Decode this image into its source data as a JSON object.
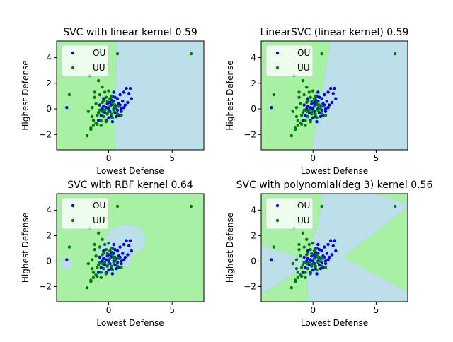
{
  "colors": {
    "region_ou": "#bddfea",
    "region_uu": "#a8f0a3",
    "ou_point": "#0000ff",
    "uu_point": "#008000",
    "axis": "#000000",
    "legend_bg": "#ffffff"
  },
  "chart_data": [
    {
      "type": "scatter",
      "title": "SVC with linear kernel 0.59",
      "xlabel": "Lowest Defense",
      "ylabel": "Highest Defense",
      "xlim": [
        -4.1,
        7.5
      ],
      "ylim": [
        -3.2,
        5.3
      ],
      "xticks": [
        0,
        5
      ],
      "yticks": [
        -2,
        0,
        2,
        4
      ],
      "xtick_labels": [
        "0",
        "5"
      ],
      "ytick_labels": [
        "−2",
        "0",
        "2",
        "4"
      ],
      "legend": {
        "placement": "upper-left",
        "entries": [
          "OU",
          "UU"
        ]
      },
      "regions": {
        "ou": [
          [
            0.5,
            -3.2
          ],
          [
            7.5,
            -3.2
          ],
          [
            7.5,
            5.3
          ],
          [
            0.6,
            5.3
          ]
        ]
      },
      "region_ellipses": []
    },
    {
      "type": "scatter",
      "title": "LinearSVC (linear kernel) 0.59",
      "xlabel": "Lowest Defense",
      "ylabel": "Highest Defense",
      "xlim": [
        -4.1,
        7.5
      ],
      "ylim": [
        -3.2,
        5.3
      ],
      "xticks": [
        0,
        5
      ],
      "yticks": [
        -2,
        0,
        2,
        4
      ],
      "xtick_labels": [
        "0",
        "5"
      ],
      "ytick_labels": [
        "−2",
        "0",
        "2",
        "4"
      ],
      "legend": {
        "placement": "upper-left",
        "entries": [
          "OU",
          "UU"
        ]
      },
      "regions": {
        "ou": [
          [
            -0.1,
            -3.2
          ],
          [
            7.5,
            -3.2
          ],
          [
            7.5,
            5.3
          ],
          [
            1.4,
            5.3
          ]
        ]
      },
      "region_ellipses": []
    },
    {
      "type": "scatter",
      "title": "SVC with RBF kernel 0.64",
      "xlabel": "Lowest Defense",
      "ylabel": "Highest Defense",
      "xlim": [
        -4.1,
        7.5
      ],
      "ylim": [
        -3.2,
        5.3
      ],
      "xticks": [
        0,
        5
      ],
      "yticks": [
        -2,
        0,
        2,
        4
      ],
      "xtick_labels": [
        "0",
        "5"
      ],
      "ytick_labels": [
        "−2",
        "0",
        "2",
        "4"
      ],
      "legend": {
        "placement": "upper-left",
        "entries": [
          "OU",
          "UU"
        ]
      },
      "regions": {
        "ou": [
          [
            -0.9,
            -0.4
          ],
          [
            -0.7,
            1.2
          ],
          [
            0.1,
            2.4
          ],
          [
            1.2,
            2.9
          ],
          [
            2.4,
            2.7
          ],
          [
            3.0,
            1.8
          ],
          [
            2.7,
            0.9
          ],
          [
            1.8,
            0.5
          ],
          [
            1.8,
            -0.2
          ],
          [
            1.4,
            -0.5
          ],
          [
            0.9,
            -0.3
          ],
          [
            0.3,
            -0.9
          ],
          [
            -0.4,
            -0.9
          ]
        ]
      },
      "region_ellipses": [
        [
          -3.3,
          -0.2,
          0.45,
          0.45
        ]
      ]
    },
    {
      "type": "scatter",
      "title": "SVC with polynomial(deg 3) kernel 0.56",
      "xlabel": "Lowest Defense",
      "ylabel": "Highest Defense",
      "xlim": [
        -4.1,
        7.5
      ],
      "ylim": [
        -3.2,
        5.3
      ],
      "xticks": [
        0,
        5
      ],
      "yticks": [
        -2,
        0,
        2,
        4
      ],
      "xtick_labels": [
        "0",
        "5"
      ],
      "ytick_labels": [
        "−2",
        "0",
        "2",
        "4"
      ],
      "legend": {
        "placement": "upper-left",
        "entries": [
          "OU",
          "UU"
        ]
      },
      "regions": {
        "ou": [
          [
            -4.1,
            1.3
          ],
          [
            -2.0,
            0.6
          ],
          [
            -0.6,
            0.2
          ],
          [
            0.3,
            2.5
          ],
          [
            0.8,
            5.3
          ],
          [
            4.8,
            5.3
          ],
          [
            7.5,
            4.5
          ],
          [
            7.5,
            4.3
          ],
          [
            2.4,
            0.3
          ],
          [
            7.5,
            -2.4
          ],
          [
            7.5,
            -3.2
          ],
          [
            -0.4,
            -3.2
          ],
          [
            -0.5,
            -0.4
          ],
          [
            -4.1,
            -2.6
          ]
        ]
      },
      "region_ellipses": []
    }
  ],
  "scatter_points": {
    "OU": [
      [
        -3.3,
        0.1
      ],
      [
        -0.4,
        0.8
      ],
      [
        -0.4,
        0.2
      ],
      [
        -0.6,
        -0.5
      ],
      [
        -0.3,
        -0.3
      ],
      [
        -0.1,
        0.4
      ],
      [
        -0.2,
        -0.9
      ],
      [
        0.0,
        0.0
      ],
      [
        0.1,
        0.5
      ],
      [
        0.1,
        -0.2
      ],
      [
        0.2,
        0.3
      ],
      [
        0.2,
        -0.6
      ],
      [
        0.3,
        1.0
      ],
      [
        0.4,
        0.0
      ],
      [
        0.4,
        0.6
      ],
      [
        0.5,
        -0.3
      ],
      [
        0.6,
        0.2
      ],
      [
        0.7,
        0.8
      ],
      [
        0.7,
        -0.1
      ],
      [
        0.8,
        0.4
      ],
      [
        0.9,
        1.1
      ],
      [
        1.0,
        0.0
      ],
      [
        1.1,
        0.6
      ],
      [
        1.2,
        1.3
      ],
      [
        1.3,
        0.3
      ],
      [
        1.4,
        1.6
      ],
      [
        1.5,
        0.5
      ],
      [
        1.7,
        1.6
      ],
      [
        1.8,
        0.8
      ],
      [
        1.6,
        1.2
      ],
      [
        0.3,
        -1.0
      ],
      [
        0.0,
        -0.7
      ],
      [
        -0.2,
        0.1
      ],
      [
        0.5,
        0.9
      ],
      [
        0.9,
        0.3
      ],
      [
        -0.5,
        0.0
      ],
      [
        -0.8,
        -0.9
      ],
      [
        0.6,
        -0.6
      ],
      [
        1.0,
        -0.2
      ],
      [
        -0.1,
        -0.4
      ],
      [
        0.2,
        0.7
      ],
      [
        0.8,
        -0.5
      ],
      [
        0.4,
        1.3
      ],
      [
        -0.7,
        0.3
      ],
      [
        1.2,
        0.1
      ]
    ],
    "UU": [
      [
        -3.1,
        1.1
      ],
      [
        -1.5,
        2.6
      ],
      [
        0.7,
        4.3
      ],
      [
        6.5,
        4.3
      ],
      [
        -1.7,
        -2.1
      ],
      [
        -1.6,
        -0.2
      ],
      [
        -1.4,
        -1.5
      ],
      [
        -1.3,
        -0.6
      ],
      [
        -1.2,
        -1.3
      ],
      [
        -1.1,
        1.3
      ],
      [
        -1.0,
        -1.1
      ],
      [
        -1.0,
        0.4
      ],
      [
        -0.9,
        -0.5
      ],
      [
        -0.8,
        2.2
      ],
      [
        -0.8,
        -0.3
      ],
      [
        -0.7,
        1.1
      ],
      [
        -0.6,
        -0.9
      ],
      [
        -0.5,
        1.7
      ],
      [
        -0.5,
        0.5
      ],
      [
        -0.4,
        -0.6
      ],
      [
        -0.3,
        1.3
      ],
      [
        -0.3,
        -0.1
      ],
      [
        -0.2,
        0.9
      ],
      [
        -0.1,
        -0.4
      ],
      [
        -0.1,
        0.6
      ],
      [
        0.0,
        1.4
      ],
      [
        0.0,
        -0.2
      ],
      [
        0.1,
        0.2
      ],
      [
        0.2,
        1.0
      ],
      [
        0.2,
        -0.4
      ],
      [
        0.3,
        0.5
      ],
      [
        0.4,
        -0.1
      ],
      [
        0.5,
        0.3
      ],
      [
        0.6,
        0.0
      ],
      [
        0.7,
        -0.4
      ],
      [
        0.8,
        0.2
      ],
      [
        1.0,
        -0.5
      ],
      [
        -1.4,
        -1.6
      ],
      [
        -1.2,
        -0.9
      ],
      [
        -0.9,
        -1.2
      ],
      [
        -0.6,
        -1.3
      ],
      [
        -1.1,
        0.9
      ],
      [
        -0.4,
        0.6
      ],
      [
        -0.2,
        -1.0
      ],
      [
        0.1,
        0.8
      ],
      [
        -0.7,
        -0.1
      ],
      [
        0.3,
        -0.7
      ],
      [
        -1.3,
        0.1
      ],
      [
        -0.5,
        -0.2
      ],
      [
        0.4,
        0.3
      ]
    ]
  }
}
